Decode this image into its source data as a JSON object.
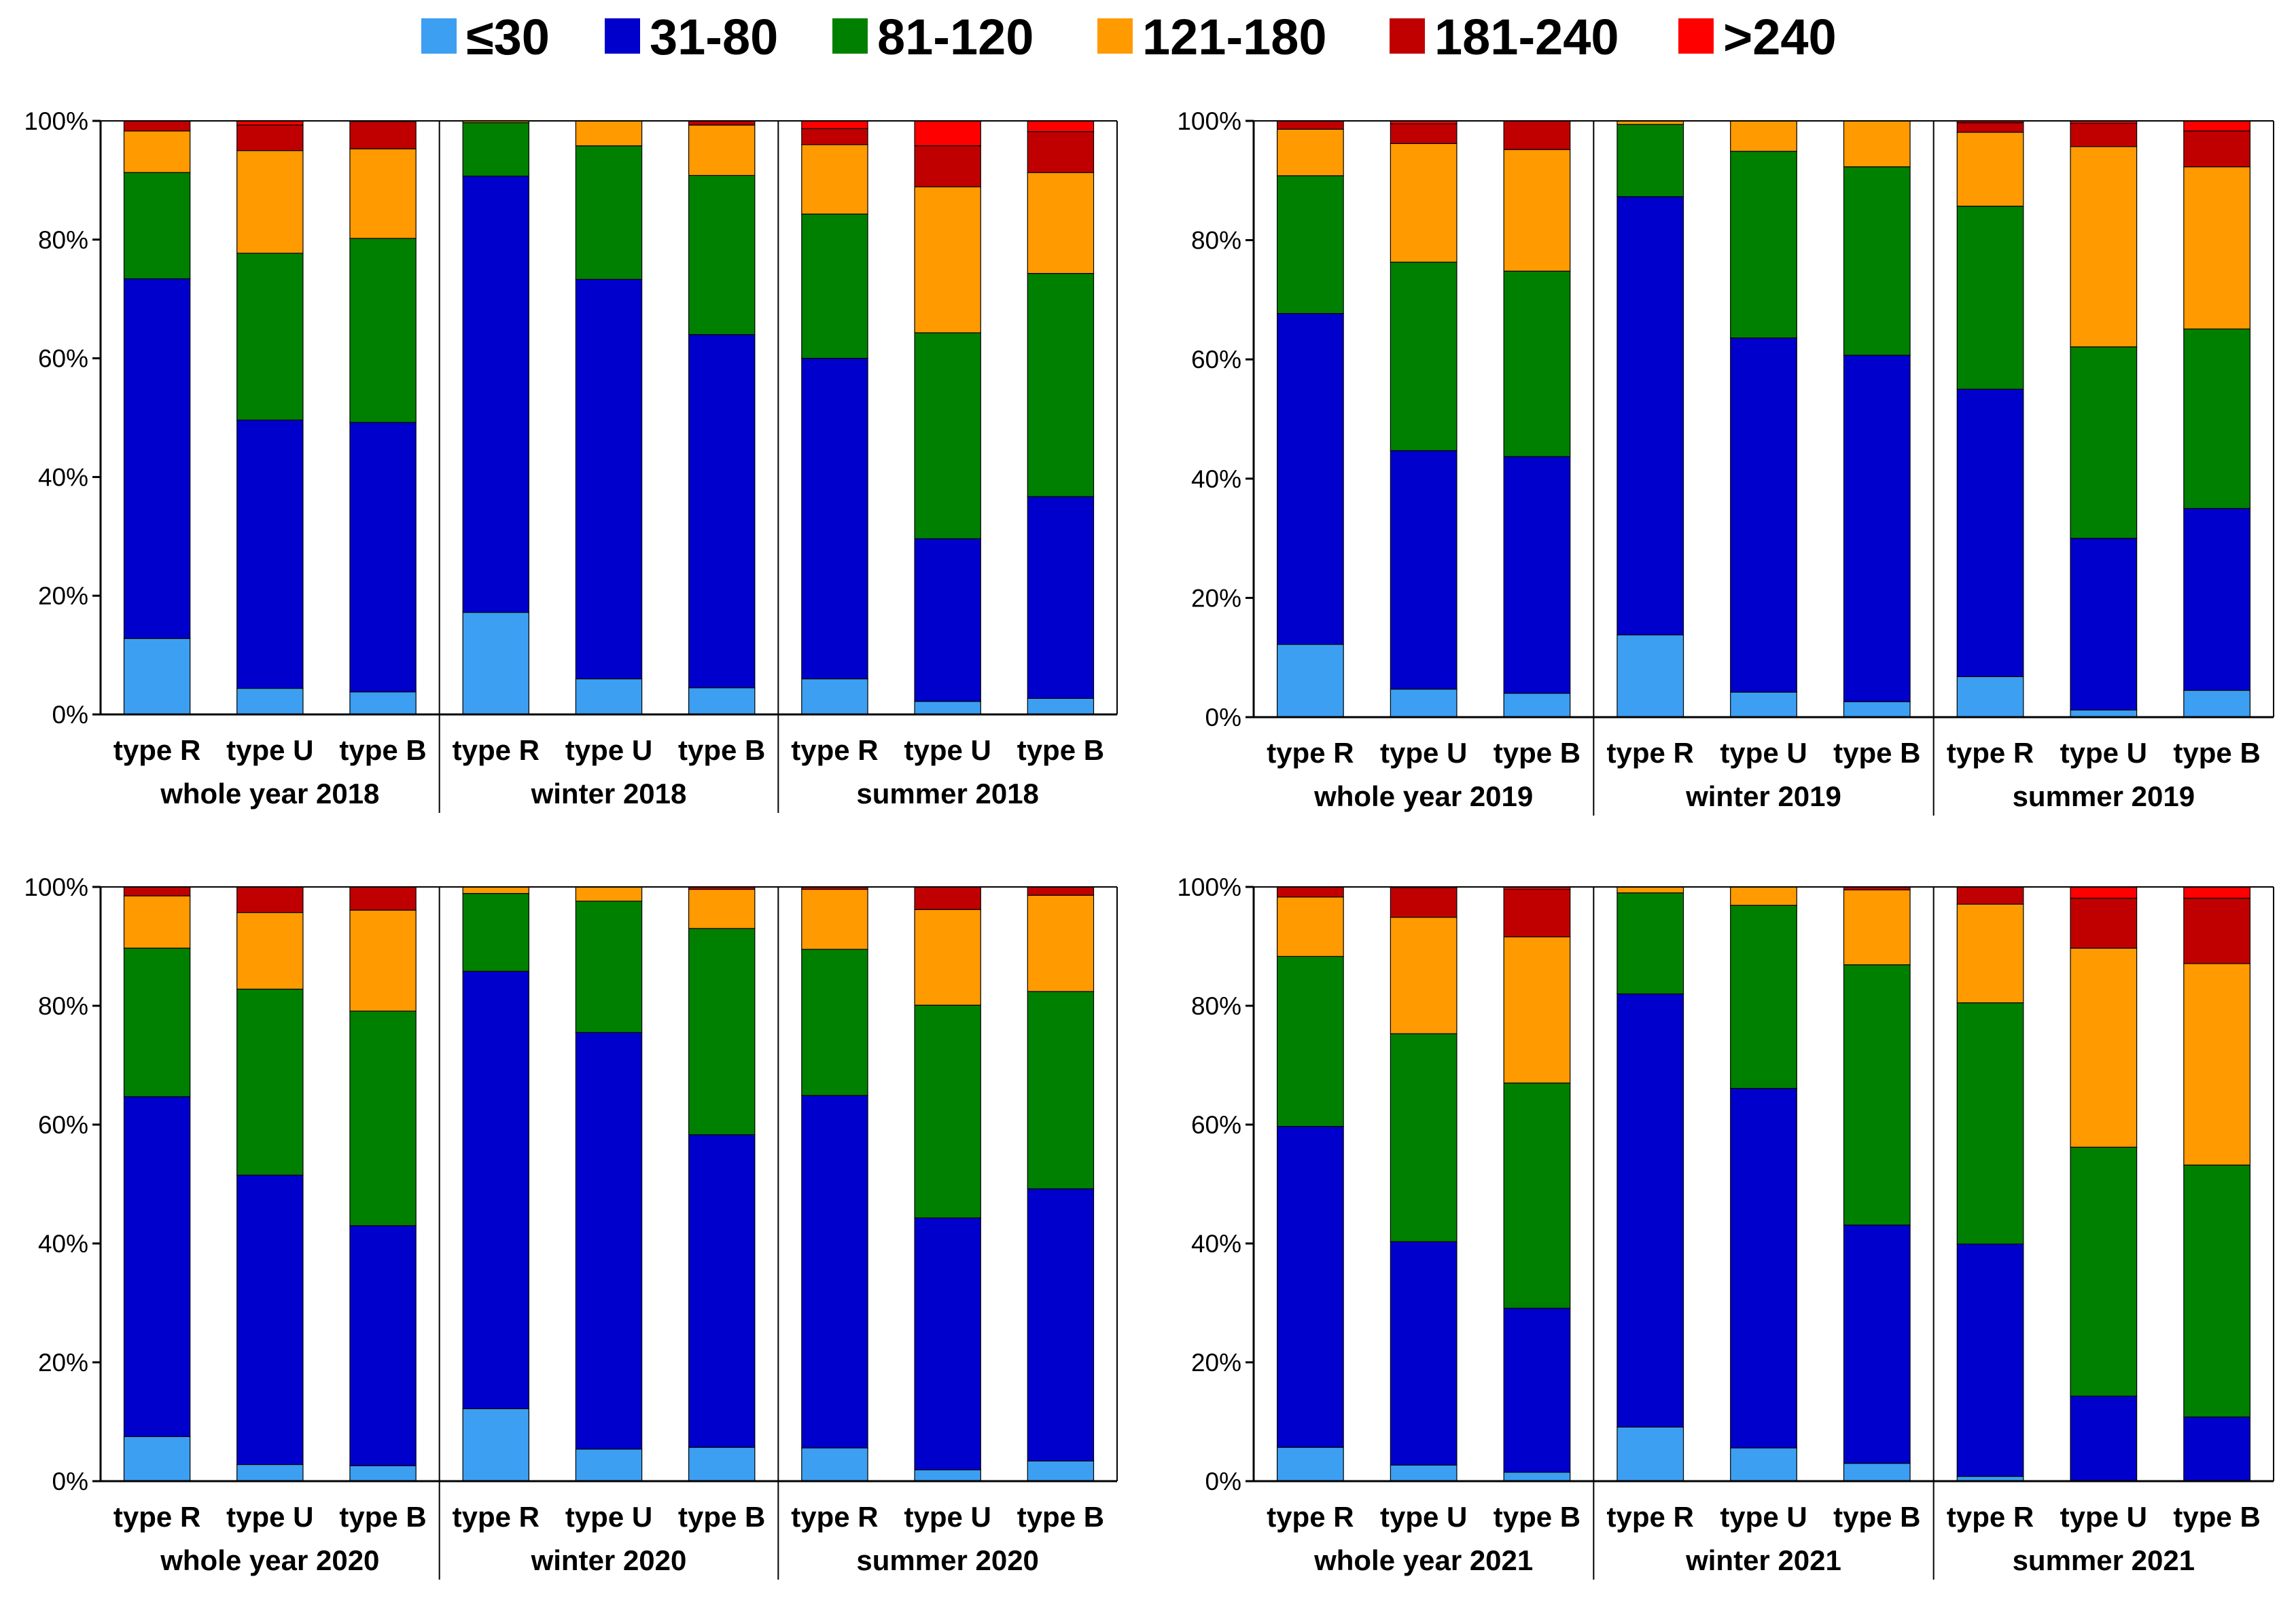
{
  "colors": {
    "le30": "#3d9ff2",
    "r31_80": "#0000cc",
    "r81_120": "#008000",
    "r121_180": "#ff9a00",
    "r181_240": "#c00000",
    "gt240": "#ff0000"
  },
  "legend": [
    {
      "label": "≤30",
      "color": "#3d9ff2"
    },
    {
      "label": "31-80",
      "color": "#0000cc"
    },
    {
      "label": "81-120",
      "color": "#008000"
    },
    {
      "label": "121-180",
      "color": "#ff9a00"
    },
    {
      "label": "181-240",
      "color": "#c00000"
    },
    {
      "label": ">240",
      "color": "#ff0000"
    }
  ],
  "chart_data": [
    {
      "type": "bar",
      "stacked": true,
      "title": "",
      "ylim": [
        0,
        100
      ],
      "y_ticks": [
        "0%",
        "20%",
        "40%",
        "60%",
        "80%",
        "100%"
      ],
      "series_names": [
        "≤30",
        "31-80",
        "81-120",
        "121-180",
        "181-240",
        ">240"
      ],
      "groups": [
        {
          "label": "whole year 2018",
          "bars": [
            {
              "label": "type R",
              "values": [
                12.8,
                60.6,
                17.9,
                7.0,
                1.7,
                0
              ]
            },
            {
              "label": "type U",
              "values": [
                4.4,
                45.2,
                28.1,
                17.3,
                4.3,
                0.7
              ]
            },
            {
              "label": "type B",
              "values": [
                3.8,
                45.4,
                31.0,
                15.1,
                4.6,
                0.1
              ]
            }
          ]
        },
        {
          "label": "winter 2018",
          "bars": [
            {
              "label": "type R",
              "values": [
                17.2,
                73.5,
                9.0,
                0.3,
                0,
                0
              ]
            },
            {
              "label": "type U",
              "values": [
                6.0,
                67.3,
                22.5,
                4.2,
                0,
                0
              ]
            },
            {
              "label": "type B",
              "values": [
                4.5,
                59.5,
                26.8,
                8.5,
                0.7,
                0
              ]
            }
          ]
        },
        {
          "label": "summer 2018",
          "bars": [
            {
              "label": "type R",
              "values": [
                6.0,
                54.0,
                24.3,
                11.7,
                2.7,
                1.3
              ]
            },
            {
              "label": "type U",
              "values": [
                2.2,
                27.4,
                34.7,
                24.6,
                6.9,
                4.2
              ]
            },
            {
              "label": "type B",
              "values": [
                2.7,
                34.0,
                37.6,
                17.0,
                6.9,
                1.8
              ]
            }
          ]
        }
      ]
    },
    {
      "type": "bar",
      "stacked": true,
      "title": "",
      "ylim": [
        0,
        100
      ],
      "y_ticks": [
        "0%",
        "20%",
        "40%",
        "60%",
        "80%",
        "100%"
      ],
      "series_names": [
        "≤30",
        "31-80",
        "81-120",
        "121-180",
        "181-240",
        ">240"
      ],
      "groups": [
        {
          "label": "whole year 2019",
          "bars": [
            {
              "label": "type R",
              "values": [
                12.2,
                55.5,
                23.1,
                7.8,
                1.4,
                0
              ]
            },
            {
              "label": "type U",
              "values": [
                4.7,
                40.0,
                31.6,
                19.9,
                3.3,
                0.5
              ]
            },
            {
              "label": "type B",
              "values": [
                4.0,
                39.7,
                31.1,
                20.4,
                4.8,
                0
              ]
            }
          ]
        },
        {
          "label": "winter 2019",
          "bars": [
            {
              "label": "type R",
              "values": [
                13.8,
                73.5,
                12.1,
                0.6,
                0,
                0
              ]
            },
            {
              "label": "type U",
              "values": [
                4.2,
                59.4,
                31.3,
                5.1,
                0,
                0
              ]
            },
            {
              "label": "type B",
              "values": [
                2.6,
                58.1,
                31.6,
                7.7,
                0,
                0
              ]
            }
          ]
        },
        {
          "label": "summer 2019",
          "bars": [
            {
              "label": "type R",
              "values": [
                6.8,
                48.2,
                30.7,
                12.4,
                1.6,
                0.3
              ]
            },
            {
              "label": "type U",
              "values": [
                1.2,
                28.8,
                32.1,
                33.6,
                3.9,
                0.4
              ]
            },
            {
              "label": "type B",
              "values": [
                4.5,
                30.5,
                30.1,
                27.2,
                6.0,
                1.7
              ]
            }
          ]
        }
      ]
    },
    {
      "type": "bar",
      "stacked": true,
      "title": "",
      "ylim": [
        0,
        100
      ],
      "y_ticks": [
        "0%",
        "20%",
        "40%",
        "60%",
        "80%",
        "100%"
      ],
      "series_names": [
        "≤30",
        "31-80",
        "81-120",
        "121-180",
        "181-240",
        ">240"
      ],
      "groups": [
        {
          "label": "whole year 2020",
          "bars": [
            {
              "label": "type R",
              "values": [
                7.5,
                57.2,
                25.0,
                8.8,
                1.5,
                0
              ]
            },
            {
              "label": "type U",
              "values": [
                2.8,
                48.7,
                31.3,
                12.9,
                4.3,
                0
              ]
            },
            {
              "label": "type B",
              "values": [
                2.6,
                40.4,
                36.1,
                17.0,
                3.9,
                0
              ]
            }
          ]
        },
        {
          "label": "winter 2020",
          "bars": [
            {
              "label": "type R",
              "values": [
                12.2,
                73.6,
                13.1,
                1.1,
                0,
                0
              ]
            },
            {
              "label": "type U",
              "values": [
                5.4,
                70.1,
                22.1,
                2.4,
                0,
                0
              ]
            },
            {
              "label": "type B",
              "values": [
                5.7,
                52.6,
                34.7,
                6.6,
                0.4,
                0
              ]
            }
          ]
        },
        {
          "label": "summer 2020",
          "bars": [
            {
              "label": "type R",
              "values": [
                5.6,
                59.3,
                24.6,
                10.1,
                0.4,
                0
              ]
            },
            {
              "label": "type U",
              "values": [
                1.9,
                42.4,
                35.8,
                16.1,
                3.8,
                0
              ]
            },
            {
              "label": "type B",
              "values": [
                3.4,
                45.8,
                33.2,
                16.2,
                1.4,
                0
              ]
            }
          ]
        }
      ]
    },
    {
      "type": "bar",
      "stacked": true,
      "title": "",
      "ylim": [
        0,
        100
      ],
      "y_ticks": [
        "0%",
        "20%",
        "40%",
        "60%",
        "80%",
        "100%"
      ],
      "series_names": [
        "≤30",
        "31-80",
        "81-120",
        "121-180",
        "181-240",
        ">240"
      ],
      "groups": [
        {
          "label": "whole year 2021",
          "bars": [
            {
              "label": "type R",
              "values": [
                5.7,
                54.0,
                28.6,
                10.0,
                1.7,
                0
              ]
            },
            {
              "label": "type U",
              "values": [
                2.7,
                37.6,
                35.0,
                19.6,
                5.0,
                0.1
              ]
            },
            {
              "label": "type B",
              "values": [
                1.5,
                27.6,
                37.9,
                24.6,
                8.0,
                0.4
              ]
            }
          ]
        },
        {
          "label": "winter 2021",
          "bars": [
            {
              "label": "type R",
              "values": [
                9.1,
                72.9,
                17.0,
                1.0,
                0,
                0
              ]
            },
            {
              "label": "type U",
              "values": [
                5.6,
                60.5,
                30.8,
                3.1,
                0,
                0
              ]
            },
            {
              "label": "type B",
              "values": [
                3.0,
                40.1,
                43.8,
                12.6,
                0.5,
                0
              ]
            }
          ]
        },
        {
          "label": "summer 2021",
          "bars": [
            {
              "label": "type R",
              "values": [
                0.8,
                39.1,
                40.6,
                16.6,
                2.9,
                0
              ]
            },
            {
              "label": "type U",
              "values": [
                0,
                14.3,
                41.9,
                33.5,
                8.4,
                1.9
              ]
            },
            {
              "label": "type B",
              "values": [
                0,
                10.8,
                42.4,
                33.9,
                11.0,
                1.9
              ]
            }
          ]
        }
      ]
    }
  ]
}
